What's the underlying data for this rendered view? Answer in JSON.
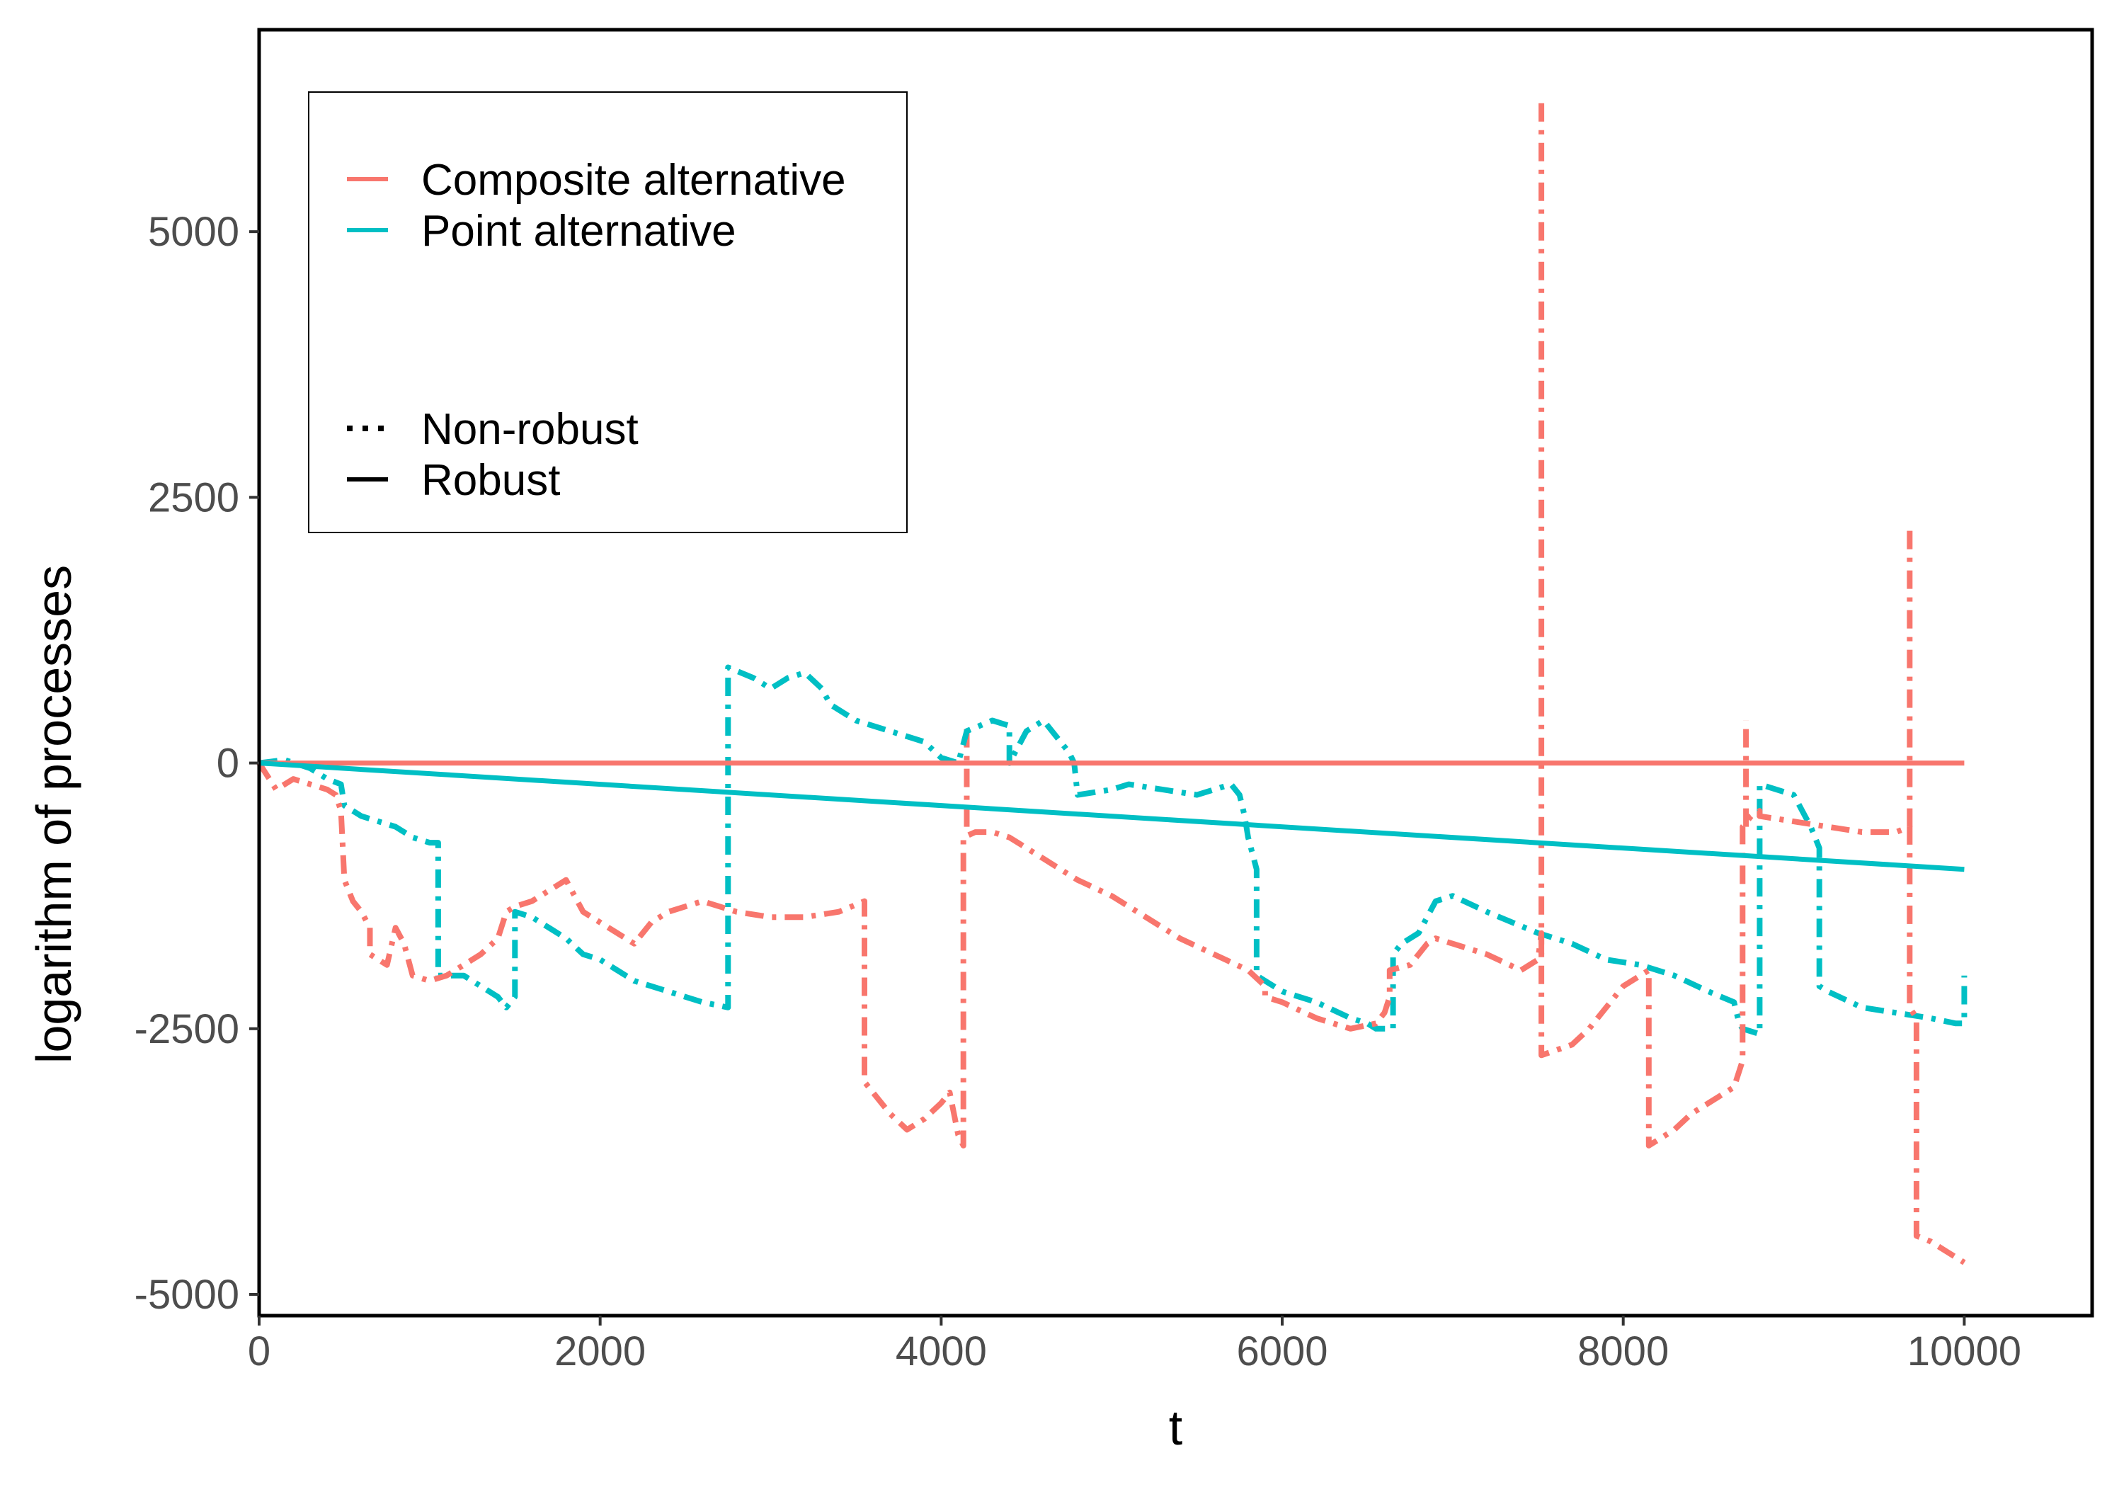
{
  "chart_data": {
    "type": "line",
    "title": "",
    "xlabel": "t",
    "ylabel": "logarithm of processes",
    "xlim": [
      0,
      10750
    ],
    "ylim": [
      -5200,
      6900
    ],
    "xticks": [
      0,
      2000,
      4000,
      6000,
      8000,
      10000
    ],
    "xtick_labels": [
      "0",
      "2000",
      "4000",
      "6000",
      "8000",
      "10000"
    ],
    "yticks": [
      -5000,
      -2500,
      0,
      2500,
      5000
    ],
    "ytick_labels": [
      "-5000",
      "-2500",
      "0",
      "2500",
      "5000"
    ],
    "grid": false,
    "legend_position": "top-left",
    "legend": {
      "color_entries": [
        {
          "label": "Composite alternative",
          "color": "#F8766D"
        },
        {
          "label": "Point alternative",
          "color": "#00BFC4"
        }
      ],
      "style_entries": [
        {
          "label": "Non-robust",
          "style": "dotted"
        },
        {
          "label": "Robust",
          "style": "solid"
        }
      ]
    },
    "series": [
      {
        "name": "Composite alternative / Robust",
        "color": "#F8766D",
        "style": "solid",
        "x": [
          0,
          10000
        ],
        "y": [
          0,
          0
        ]
      },
      {
        "name": "Point alternative / Robust",
        "color": "#00BFC4",
        "style": "solid",
        "x": [
          0,
          10000
        ],
        "y": [
          0,
          -1000
        ]
      },
      {
        "name": "Point alternative / Non-robust",
        "color": "#00BFC4",
        "style": "dotdash",
        "x": [
          0,
          150,
          300,
          400,
          480,
          500,
          600,
          700,
          800,
          900,
          1000,
          1050,
          1050,
          1200,
          1300,
          1400,
          1450,
          1500,
          1500,
          1600,
          1700,
          1800,
          1900,
          2000,
          2100,
          2200,
          2400,
          2600,
          2750,
          2750,
          2900,
          3000,
          3100,
          3200,
          3300,
          3350,
          3500,
          3700,
          3900,
          4000,
          4100,
          4150,
          4300,
          4400,
          4400,
          4500,
          4600,
          4700,
          4750,
          4780,
          4800,
          5000,
          5100,
          5300,
          5500,
          5600,
          5700,
          5750,
          5780,
          5800,
          5850,
          5850,
          6000,
          6200,
          6400,
          6500,
          6550,
          6600,
          6650,
          6650,
          6700,
          6800,
          6900,
          7000,
          7200,
          7500,
          7700,
          7900,
          8100,
          8300,
          8500,
          8650,
          8680,
          8700,
          8800,
          8800,
          9000,
          9100,
          9150,
          9150,
          9200,
          9400,
          9600,
          9800,
          9950,
          10000,
          10000
        ],
        "y": [
          0,
          30,
          -50,
          -150,
          -200,
          -400,
          -500,
          -550,
          -600,
          -700,
          -750,
          -750,
          -2000,
          -2000,
          -2100,
          -2200,
          -2300,
          -2200,
          -1400,
          -1450,
          -1550,
          -1650,
          -1800,
          -1850,
          -1950,
          -2050,
          -2150,
          -2250,
          -2300,
          900,
          800,
          700,
          800,
          850,
          700,
          550,
          400,
          300,
          200,
          50,
          0,
          300,
          400,
          350,
          0,
          300,
          400,
          200,
          100,
          0,
          -300,
          -250,
          -200,
          -250,
          -300,
          -250,
          -200,
          -300,
          -500,
          -700,
          -1000,
          -2000,
          -2150,
          -2250,
          -2400,
          -2450,
          -2500,
          -2500,
          -2500,
          -1800,
          -1700,
          -1600,
          -1300,
          -1250,
          -1400,
          -1600,
          -1700,
          -1850,
          -1900,
          -2000,
          -2150,
          -2250,
          -2450,
          -2500,
          -2550,
          -200,
          -300,
          -600,
          -800,
          -2100,
          -2150,
          -2300,
          -2350,
          -2400,
          -2450,
          -2450,
          -2000
        ]
      },
      {
        "name": "Composite alternative / Non-robust",
        "color": "#F8766D",
        "style": "dotdash",
        "x": [
          0,
          100,
          200,
          300,
          400,
          450,
          480,
          500,
          550,
          600,
          650,
          650,
          750,
          800,
          850,
          900,
          1000,
          1100,
          1200,
          1300,
          1400,
          1450,
          1500,
          1600,
          1700,
          1800,
          1900,
          2000,
          2100,
          2200,
          2300,
          2400,
          2500,
          2600,
          2700,
          2800,
          3000,
          3200,
          3400,
          3550,
          3550,
          3600,
          3700,
          3800,
          3900,
          4000,
          4050,
          4100,
          4130,
          4130,
          4200,
          4300,
          4400,
          4500,
          4600,
          4700,
          4800,
          5000,
          5200,
          5400,
          5600,
          5800,
          5900,
          5900,
          6000,
          6200,
          6400,
          6550,
          6600,
          6630,
          6630,
          6750,
          6800,
          6850,
          6900,
          7000,
          7200,
          7400,
          7500,
          7520,
          7520,
          7700,
          7800,
          7900,
          8000,
          8100,
          8150,
          8150,
          8300,
          8400,
          8500,
          8650,
          8700,
          8700,
          8750,
          8800,
          8800,
          9000,
          9200,
          9400,
          9600,
          9680,
          9680,
          9720,
          9720,
          9800,
          9900,
          10000
        ],
        "y": [
          0,
          -250,
          -150,
          -200,
          -250,
          -300,
          -450,
          -1100,
          -1300,
          -1400,
          -1550,
          -1800,
          -1900,
          -1550,
          -1700,
          -2000,
          -2050,
          -2000,
          -1900,
          -1800,
          -1650,
          -1400,
          -1350,
          -1300,
          -1200,
          -1100,
          -1400,
          -1500,
          -1600,
          -1700,
          -1500,
          -1400,
          -1350,
          -1300,
          -1350,
          -1400,
          -1450,
          -1450,
          -1400,
          -1300,
          -3000,
          -3100,
          -3300,
          -3450,
          -3350,
          -3200,
          -3100,
          -3500,
          -3600,
          -700,
          -650,
          -650,
          -700,
          -800,
          -900,
          -1000,
          -1100,
          -1250,
          -1450,
          -1650,
          -1800,
          -1950,
          -2100,
          -2200,
          -2250,
          -2400,
          -2500,
          -2450,
          -2350,
          -2200,
          -1950,
          -1900,
          -1800,
          -1700,
          -1650,
          -1700,
          -1800,
          -1950,
          -1850,
          -1600,
          -2750,
          -2650,
          -2500,
          -2300,
          -2100,
          -2000,
          -1950,
          -3600,
          -3450,
          -3300,
          -3200,
          -3050,
          -2800,
          -600,
          -500,
          -450,
          -500,
          -550,
          -600,
          -650,
          -650,
          -600,
          -2300,
          -2400,
          -4450,
          -4500,
          -4600,
          -4700
        ]
      }
    ],
    "spikes": [
      {
        "series": "Composite alternative / Non-robust",
        "x": 7520,
        "y_from": -1800,
        "y_to": 6250,
        "color": "#F8766D"
      },
      {
        "series": "Composite alternative / Non-robust",
        "x": 9680,
        "y_from": -600,
        "y_to": 2200,
        "color": "#F8766D"
      },
      {
        "series": "Composite alternative / Non-robust",
        "x": 8720,
        "y_from": -600,
        "y_to": 400,
        "color": "#F8766D"
      },
      {
        "series": "Composite alternative / Non-robust",
        "x": 4150,
        "y_from": -600,
        "y_to": 350,
        "color": "#F8766D"
      }
    ]
  }
}
